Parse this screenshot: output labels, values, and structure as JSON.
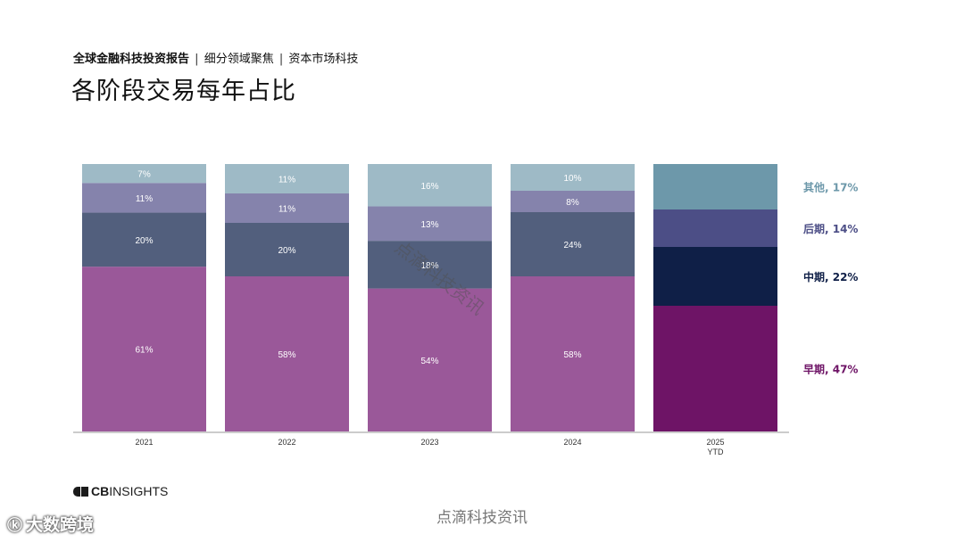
{
  "header": {
    "report_name": "全球金融科技投资报告",
    "sep1": "|",
    "section": "细分领域聚焦",
    "sep2": "|",
    "topic": "资本市场科技",
    "title": "各阶段交易每年占比"
  },
  "chart_data": {
    "type": "bar",
    "stacked": true,
    "percent": true,
    "title": "各阶段交易每年占比",
    "categories": [
      "2021",
      "2022",
      "2023",
      "2024",
      "2025\nYTD"
    ],
    "series": [
      {
        "name": "早期",
        "color": "#9a5899",
        "color_2025": "#6e1466",
        "values": [
          61,
          58,
          54,
          58,
          47
        ],
        "labels": [
          "61%",
          "58%",
          "54%",
          "58%",
          ""
        ]
      },
      {
        "name": "中期",
        "color": "#525f7d",
        "color_2025": "#0f1f47",
        "values": [
          20,
          20,
          18,
          24,
          22
        ],
        "labels": [
          "20%",
          "20%",
          "18%",
          "24%",
          ""
        ]
      },
      {
        "name": "后期",
        "color": "#8583ac",
        "color_2025": "#4c4e86",
        "values": [
          11,
          11,
          13,
          8,
          14
        ],
        "labels": [
          "11%",
          "11%",
          "13%",
          "8%",
          ""
        ]
      },
      {
        "name": "其他",
        "color": "#9ebac6",
        "color_2025": "#6d98aa",
        "values": [
          7,
          11,
          16,
          10,
          17
        ],
        "labels": [
          "7%",
          "11%",
          "16%",
          "10%",
          ""
        ]
      }
    ],
    "legend": [
      {
        "name": "其他",
        "value": "17%",
        "color": "#6d98aa"
      },
      {
        "name": "后期",
        "value": "14%",
        "color": "#4c4e86"
      },
      {
        "name": "中期",
        "value": "22%",
        "color": "#0f1f47"
      },
      {
        "name": "早期",
        "value": "47%",
        "color": "#6e1466"
      }
    ],
    "legend_position": "right",
    "ylim": [
      0,
      100
    ],
    "grid": false
  },
  "footer": {
    "logo_cb": "CB",
    "logo_rest": "INSIGHTS",
    "watermark": "点滴科技资讯",
    "brand": "大数跨境"
  },
  "overlay": {
    "diagonal_watermark": "点滴科技资讯"
  }
}
